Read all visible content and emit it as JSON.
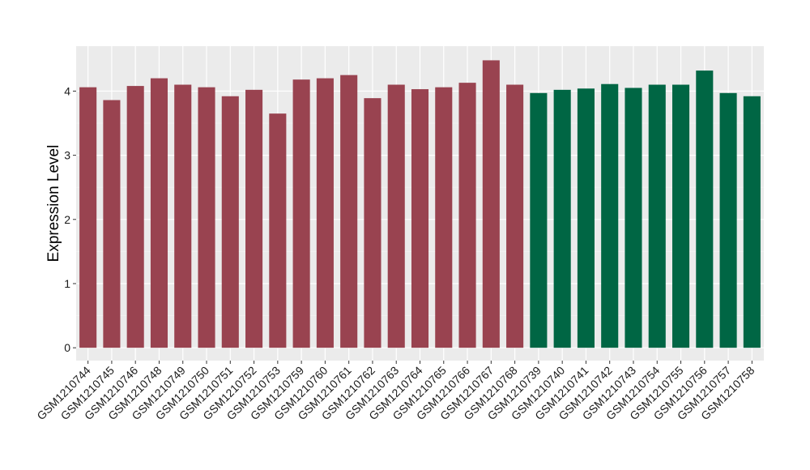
{
  "chart_data": {
    "type": "bar",
    "title": "",
    "xlabel": "",
    "ylabel": "Expression Level",
    "ylim": [
      -0.2,
      4.7
    ],
    "yticks": [
      0,
      1,
      2,
      3,
      4
    ],
    "grid": true,
    "background": "#EBEBEB",
    "categories": [
      "GSM1210744",
      "GSM1210745",
      "GSM1210746",
      "GSM1210748",
      "GSM1210749",
      "GSM1210750",
      "GSM1210751",
      "GSM1210752",
      "GSM1210753",
      "GSM1210759",
      "GSM1210760",
      "GSM1210761",
      "GSM1210762",
      "GSM1210763",
      "GSM1210764",
      "GSM1210765",
      "GSM1210766",
      "GSM1210767",
      "GSM1210768",
      "GSM1210739",
      "GSM1210740",
      "GSM1210741",
      "GSM1210742",
      "GSM1210743",
      "GSM1210754",
      "GSM1210755",
      "GSM1210756",
      "GSM1210757",
      "GSM1210758"
    ],
    "values": [
      4.06,
      3.86,
      4.08,
      4.2,
      4.1,
      4.06,
      3.92,
      4.02,
      3.65,
      4.18,
      4.2,
      4.25,
      3.89,
      4.1,
      4.03,
      4.06,
      4.13,
      4.48,
      4.1,
      3.97,
      4.02,
      4.04,
      4.11,
      4.05,
      4.1,
      4.1,
      4.32,
      3.97,
      3.92
    ],
    "groups": [
      0,
      0,
      0,
      0,
      0,
      0,
      0,
      0,
      0,
      0,
      0,
      0,
      0,
      0,
      0,
      0,
      0,
      0,
      0,
      1,
      1,
      1,
      1,
      1,
      1,
      1,
      1,
      1,
      1
    ],
    "group_colors": [
      "#994350",
      "#006644"
    ]
  }
}
